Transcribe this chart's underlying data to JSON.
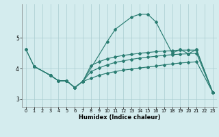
{
  "xlabel": "Humidex (Indice chaleur)",
  "bg_color": "#d4ecee",
  "grid_color": "#aacdd0",
  "line_color": "#2a7d72",
  "xlim": [
    -0.5,
    23.5
  ],
  "ylim": [
    2.75,
    6.1
  ],
  "yticks": [
    3,
    4,
    5
  ],
  "xticks": [
    0,
    1,
    2,
    3,
    4,
    5,
    6,
    7,
    8,
    9,
    10,
    11,
    12,
    13,
    14,
    15,
    16,
    17,
    18,
    19,
    20,
    21,
    22,
    23
  ],
  "curve1_x": [
    0,
    1,
    3,
    4,
    5,
    6,
    7,
    10,
    11,
    13,
    14,
    15,
    16,
    18,
    19,
    20,
    21,
    23
  ],
  "curve1_y": [
    4.62,
    4.07,
    3.78,
    3.6,
    3.6,
    3.38,
    3.58,
    4.88,
    5.28,
    5.68,
    5.77,
    5.77,
    5.52,
    4.5,
    4.62,
    4.48,
    4.62,
    3.22
  ],
  "curve2_x": [
    1,
    3,
    4,
    5,
    6,
    7,
    8,
    9,
    10,
    11,
    12,
    13,
    14,
    15,
    16,
    17,
    18,
    19,
    20,
    21,
    23
  ],
  "curve2_y": [
    4.07,
    3.78,
    3.6,
    3.6,
    3.38,
    3.58,
    4.1,
    4.22,
    4.32,
    4.38,
    4.43,
    4.46,
    4.5,
    4.52,
    4.55,
    4.57,
    4.58,
    4.6,
    4.6,
    4.6,
    3.22
  ],
  "curve3_x": [
    1,
    3,
    4,
    5,
    6,
    7,
    8,
    9,
    10,
    11,
    12,
    13,
    14,
    15,
    16,
    17,
    18,
    19,
    20,
    21,
    23
  ],
  "curve3_y": [
    4.07,
    3.78,
    3.6,
    3.6,
    3.38,
    3.58,
    3.9,
    4.02,
    4.12,
    4.2,
    4.25,
    4.3,
    4.34,
    4.37,
    4.4,
    4.43,
    4.45,
    4.47,
    4.48,
    4.5,
    3.22
  ],
  "curve4_x": [
    0,
    1,
    3,
    4,
    5,
    6,
    7,
    8,
    9,
    10,
    11,
    12,
    13,
    14,
    15,
    16,
    17,
    18,
    19,
    20,
    21,
    23
  ],
  "curve4_y": [
    4.62,
    4.07,
    3.78,
    3.6,
    3.6,
    3.38,
    3.58,
    3.68,
    3.78,
    3.85,
    3.9,
    3.95,
    3.98,
    4.02,
    4.05,
    4.08,
    4.12,
    4.15,
    4.18,
    4.2,
    4.22,
    3.22
  ]
}
